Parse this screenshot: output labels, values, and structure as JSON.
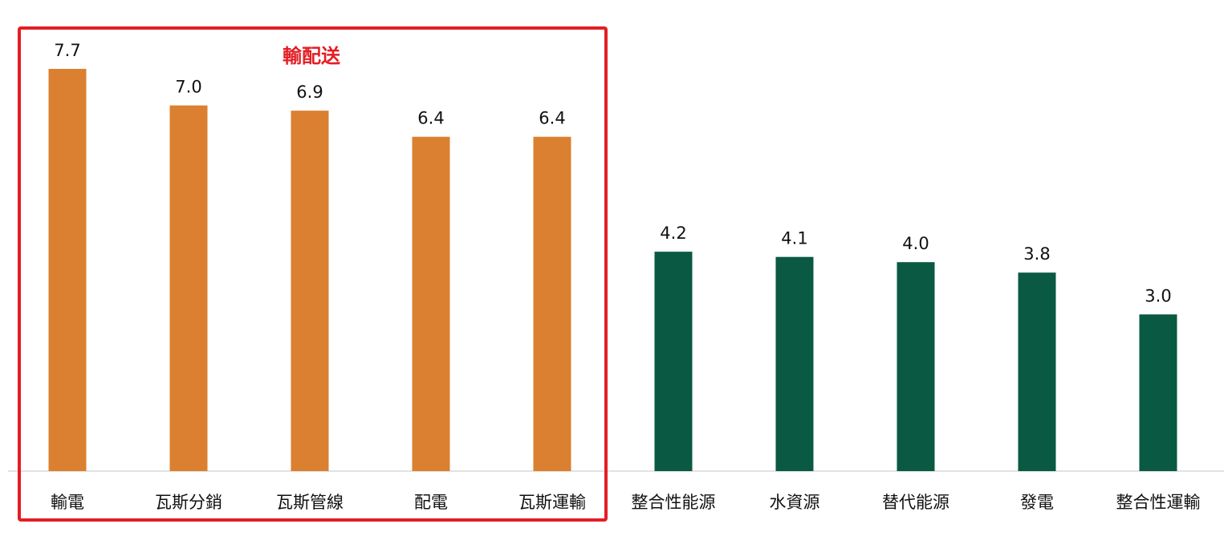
{
  "chart_data": {
    "type": "bar",
    "categories": [
      "輸電",
      "瓦斯分銷",
      "瓦斯管線",
      "配電",
      "瓦斯運輸",
      "整合性能源",
      "水資源",
      "替代能源",
      "發電",
      "整合性運輸"
    ],
    "values": [
      7.7,
      7.0,
      6.9,
      6.4,
      6.4,
      4.2,
      4.1,
      4.0,
      3.8,
      3.0
    ],
    "value_labels": [
      "7.7",
      "7.0",
      "6.9",
      "6.4",
      "6.4",
      "4.2",
      "4.1",
      "4.0",
      "3.8",
      "3.0"
    ],
    "bar_colors": [
      "#db8030",
      "#db8030",
      "#db8030",
      "#db8030",
      "#db8030",
      "#0a5942",
      "#0a5942",
      "#0a5942",
      "#0a5942",
      "#0a5942"
    ],
    "ylim": [
      0,
      8
    ],
    "grid": false,
    "annotation": {
      "text": "輸配送",
      "color": "#e31e24",
      "box_color": "#e31e24",
      "box_range": [
        0,
        4
      ]
    }
  }
}
